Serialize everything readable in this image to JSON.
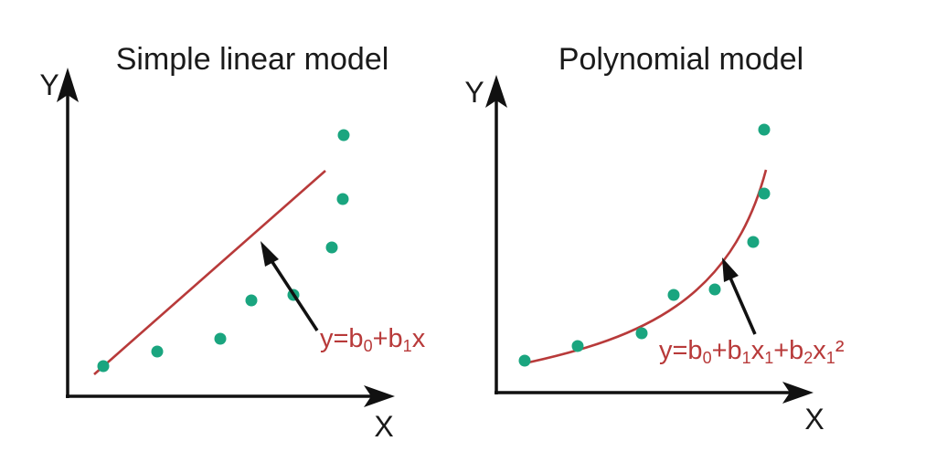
{
  "colors": {
    "axis": "#111111",
    "line": "#b83a3a",
    "points": "#1aa57f",
    "text": "#1a1a1a",
    "equation": "#b83a3a"
  },
  "panels": [
    {
      "title": "Simple linear model",
      "x_axis_label": "X",
      "y_axis_label": "Y",
      "curve_type": "linear",
      "equation": {
        "parts": [
          {
            "text": "y=b",
            "sub": false
          },
          {
            "text": "0",
            "sub": true
          },
          {
            "text": "+b",
            "sub": false
          },
          {
            "text": "1",
            "sub": true
          },
          {
            "text": "x",
            "sub": false
          }
        ]
      }
    },
    {
      "title": "Polynomial model",
      "x_axis_label": "X",
      "y_axis_label": "Y",
      "curve_type": "quadratic",
      "equation": {
        "parts": [
          {
            "text": "y=b",
            "sub": false
          },
          {
            "text": "0",
            "sub": true
          },
          {
            "text": "+b",
            "sub": false
          },
          {
            "text": "1",
            "sub": true
          },
          {
            "text": "x",
            "sub": false
          },
          {
            "text": "1",
            "sub": true
          },
          {
            "text": "+b",
            "sub": false
          },
          {
            "text": "2",
            "sub": true
          },
          {
            "text": "x",
            "sub": false
          },
          {
            "text": "1",
            "sub": true
          },
          {
            "text": "²",
            "sub": false
          }
        ]
      }
    }
  ]
}
